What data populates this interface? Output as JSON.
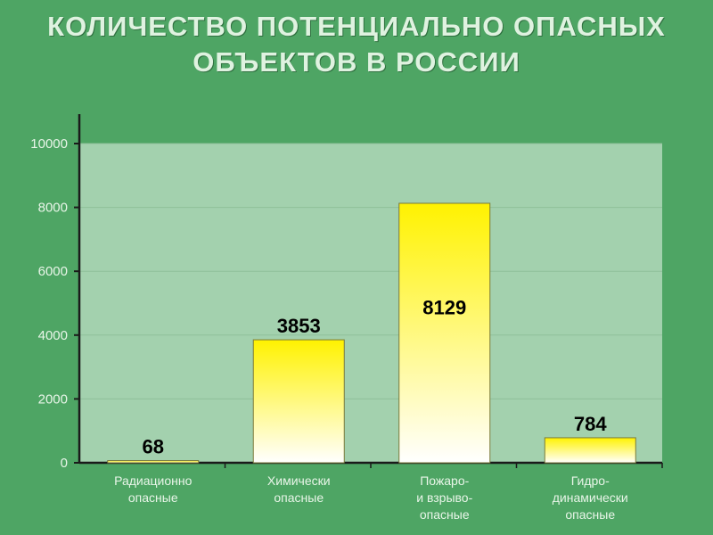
{
  "title_lines": [
    "КОЛИЧЕСТВО ПОТЕНЦИАЛЬНО ОПАСНЫХ",
    "ОБЪЕКТОВ В РОССИИ"
  ],
  "colors": {
    "background": "#4ea564",
    "plot_area": "#a3d1ae",
    "bar_top": "#fff200",
    "bar_bottom": "#ffffff",
    "gridline": "#8fbf9a"
  },
  "chart_data": {
    "type": "bar",
    "categories": [
      [
        "Радиационно",
        "опасные"
      ],
      [
        "Химически",
        "опасные"
      ],
      [
        "Пожаро-",
        "и взрыво-",
        "опасные"
      ],
      [
        "Гидро-",
        "динамически",
        "опасные"
      ]
    ],
    "values": [
      68,
      3853,
      8129,
      784
    ],
    "data_labels": [
      "68",
      "3853",
      "8129",
      "784"
    ],
    "ylim": [
      0,
      10000
    ],
    "yticks": [
      0,
      2000,
      4000,
      6000,
      8000,
      10000
    ],
    "grid": true,
    "legend": "none"
  }
}
